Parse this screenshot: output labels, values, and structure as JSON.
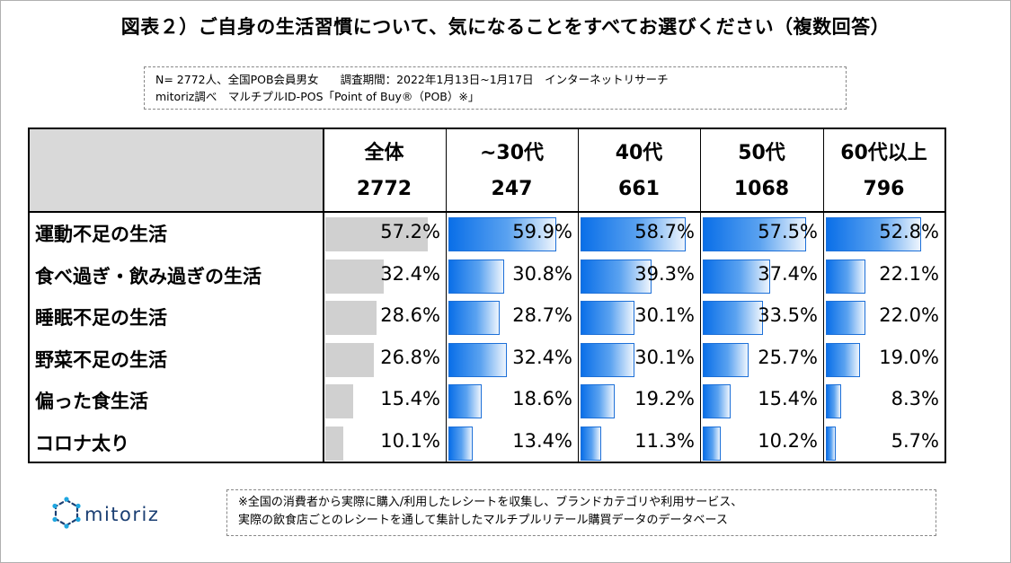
{
  "title": "図表２）ご自身の生活習慣について、気になることをすべてお選びください（複数回答）",
  "survey": {
    "line1a": "N= 2772人、全国POB会員男女",
    "line1b": "調査期間：2022年1月13日~1月17日　インターネットリサーチ",
    "line2": "mitoriz調べ　マルチプルID-POS「Point of Buy®（POB）※」"
  },
  "columns": [
    {
      "label": "全体",
      "n": "2772"
    },
    {
      "label": "~30代",
      "n": "247"
    },
    {
      "label": "40代",
      "n": "661"
    },
    {
      "label": "50代",
      "n": "1068"
    },
    {
      "label": "60代以上",
      "n": "796"
    }
  ],
  "colors": {
    "overall_bar": "#d0d0d0",
    "segment_bar": "#1d70d8"
  },
  "chart_data": {
    "type": "table",
    "categories": [
      "運動不足の生活",
      "食べ過ぎ・飲み過ぎの生活",
      "睡眠不足の生活",
      "野菜不足の生活",
      "偏った食生活",
      "コロナ太り"
    ],
    "series": [
      {
        "name": "全体",
        "values": [
          57.2,
          32.4,
          28.6,
          26.8,
          15.4,
          10.1
        ]
      },
      {
        "name": "~30代",
        "values": [
          59.9,
          30.8,
          28.7,
          32.4,
          18.6,
          13.4
        ]
      },
      {
        "name": "40代",
        "values": [
          58.7,
          39.3,
          30.1,
          30.1,
          19.2,
          11.3
        ]
      },
      {
        "name": "50代",
        "values": [
          57.5,
          37.4,
          33.5,
          25.7,
          15.4,
          10.2
        ]
      },
      {
        "name": "60代以上",
        "values": [
          52.8,
          22.1,
          22.0,
          19.0,
          8.3,
          5.7
        ]
      }
    ],
    "labels": [
      [
        "57.2%",
        "59.9%",
        "58.7%",
        "57.5%",
        "52.8%"
      ],
      [
        "32.4%",
        "30.8%",
        "39.3%",
        "37.4%",
        "22.1%"
      ],
      [
        "28.6%",
        "28.7%",
        "30.1%",
        "33.5%",
        "22.0%"
      ],
      [
        "26.8%",
        "32.4%",
        "30.1%",
        "25.7%",
        "19.0%"
      ],
      [
        "15.4%",
        "18.6%",
        "19.2%",
        "15.4%",
        "8.3%"
      ],
      [
        "10.1%",
        "13.4%",
        "11.3%",
        "10.2%",
        "5.7%"
      ]
    ],
    "unit": "%"
  },
  "logo": {
    "text": "mitoriz",
    "icon": "mitoriz-logo-icon"
  },
  "note": {
    "line1": "※全国の消費者から実際に購入/利用したレシートを収集し、ブランドカテゴリや利用サービス、",
    "line2": "実際の飲食店ごとのレシートを通して集計したマルチプルリテール購買データのデータベース"
  }
}
